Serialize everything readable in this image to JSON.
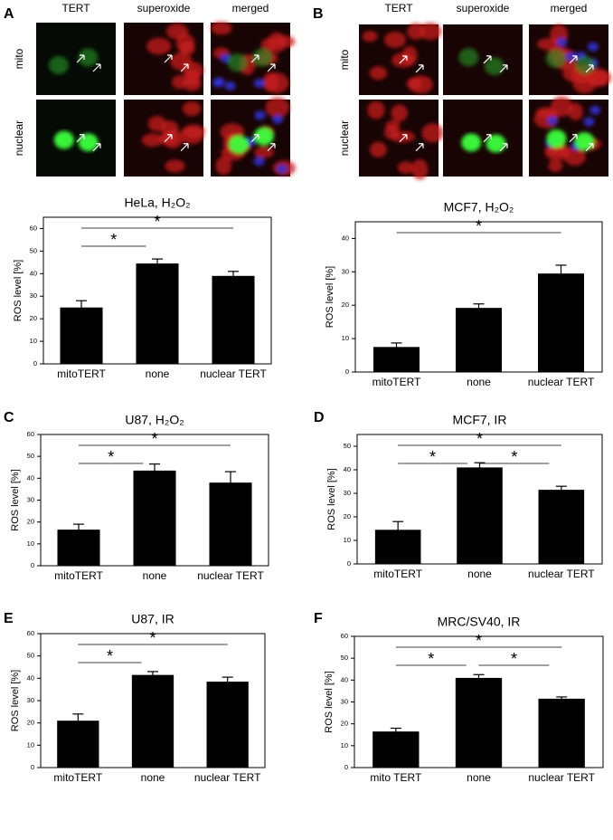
{
  "panels": [
    "A",
    "B",
    "C",
    "D",
    "E",
    "F"
  ],
  "micrographs": [
    {
      "columns": [
        "TERT",
        "superoxide",
        "merged"
      ],
      "rows": [
        "mito",
        "nuclear"
      ]
    },
    {
      "columns": [
        "TERT",
        "superoxide",
        "merged"
      ],
      "rows": [
        "mito",
        "nuclear"
      ]
    }
  ],
  "chart_data": [
    {
      "type": "bar",
      "title": "HeLa, H₂O₂",
      "y_label": "ROS level [%]",
      "categories": [
        "mitoTERT",
        "none",
        "nuclear TERT"
      ],
      "values": [
        25,
        44.5,
        39
      ],
      "errors": [
        3,
        2,
        2
      ],
      "color": "#000000",
      "ylim": [
        0,
        65
      ],
      "yticks": [
        0,
        10,
        20,
        30,
        40,
        50,
        60
      ],
      "significance": [
        {
          "pair": [
            "mitoTERT",
            "none"
          ],
          "label": "*"
        },
        {
          "pair": [
            "mitoTERT",
            "nuclear TERT"
          ],
          "label": "*"
        }
      ]
    },
    {
      "type": "bar",
      "title": "MCF7, H₂O₂",
      "y_label": "ROS level [%]",
      "categories": [
        "mitoTERT",
        "none",
        "nuclear TERT"
      ],
      "values": [
        7.5,
        19.2,
        29.5
      ],
      "errors": [
        1.2,
        1.2,
        2.5
      ],
      "color": "#000000",
      "ylim": [
        0,
        45
      ],
      "yticks": [
        0,
        10,
        20,
        30,
        40
      ],
      "significance": [
        {
          "pair": [
            "mitoTERT",
            "nuclear TERT"
          ],
          "label": "*"
        }
      ]
    },
    {
      "type": "bar",
      "title": "U87, H₂O₂",
      "y_label": "ROS level [%]",
      "categories": [
        "mitoTERT",
        "none",
        "nuclear TERT"
      ],
      "values": [
        16.5,
        43.5,
        38
      ],
      "errors": [
        2.5,
        3,
        5
      ],
      "color": "#000000",
      "ylim": [
        0,
        60
      ],
      "yticks": [
        0,
        10,
        20,
        30,
        40,
        50,
        60
      ],
      "significance": [
        {
          "pair": [
            "mitoTERT",
            "none"
          ],
          "label": "*"
        },
        {
          "pair": [
            "mitoTERT",
            "nuclear TERT"
          ],
          "label": "*"
        }
      ]
    },
    {
      "type": "bar",
      "title": "MCF7, IR",
      "y_label": "ROS level [%]",
      "categories": [
        "mitoTERT",
        "none",
        "nuclear TERT"
      ],
      "values": [
        14.5,
        41,
        31.5
      ],
      "errors": [
        3.5,
        2,
        1.5
      ],
      "color": "#000000",
      "ylim": [
        0,
        55
      ],
      "yticks": [
        0,
        10,
        20,
        30,
        40,
        50
      ],
      "significance": [
        {
          "pair": [
            "mitoTERT",
            "none"
          ],
          "label": "*"
        },
        {
          "pair": [
            "none",
            "nuclear TERT"
          ],
          "label": "*"
        },
        {
          "pair": [
            "mitoTERT",
            "nuclear TERT"
          ],
          "label": "*"
        }
      ]
    },
    {
      "type": "bar",
      "title": "U87, IR",
      "y_label": "ROS level [%]",
      "categories": [
        "mitoTERT",
        "none",
        "nuclear TERT"
      ],
      "values": [
        21,
        41.5,
        38.5
      ],
      "errors": [
        3,
        1.5,
        2
      ],
      "color": "#000000",
      "ylim": [
        0,
        60
      ],
      "yticks": [
        0,
        10,
        20,
        30,
        40,
        50,
        60
      ],
      "significance": [
        {
          "pair": [
            "mitoTERT",
            "none"
          ],
          "label": "*"
        },
        {
          "pair": [
            "mitoTERT",
            "nuclear TERT"
          ],
          "label": "*"
        }
      ]
    },
    {
      "type": "bar",
      "title": "MRC/SV40, IR",
      "y_label": "ROS level [%]",
      "categories": [
        "mito TERT",
        "none",
        "nuclear TERT"
      ],
      "values": [
        16.5,
        41,
        31.5
      ],
      "errors": [
        1.5,
        1.5,
        0.8
      ],
      "color": "#000000",
      "ylim": [
        0,
        60
      ],
      "yticks": [
        0,
        10,
        20,
        30,
        40,
        50,
        60
      ],
      "significance": [
        {
          "pair": [
            "mito TERT",
            "none"
          ],
          "label": "*"
        },
        {
          "pair": [
            "none",
            "nuclear TERT"
          ],
          "label": "*"
        },
        {
          "pair": [
            "mito TERT",
            "nuclear TERT"
          ],
          "label": "*"
        }
      ]
    }
  ]
}
